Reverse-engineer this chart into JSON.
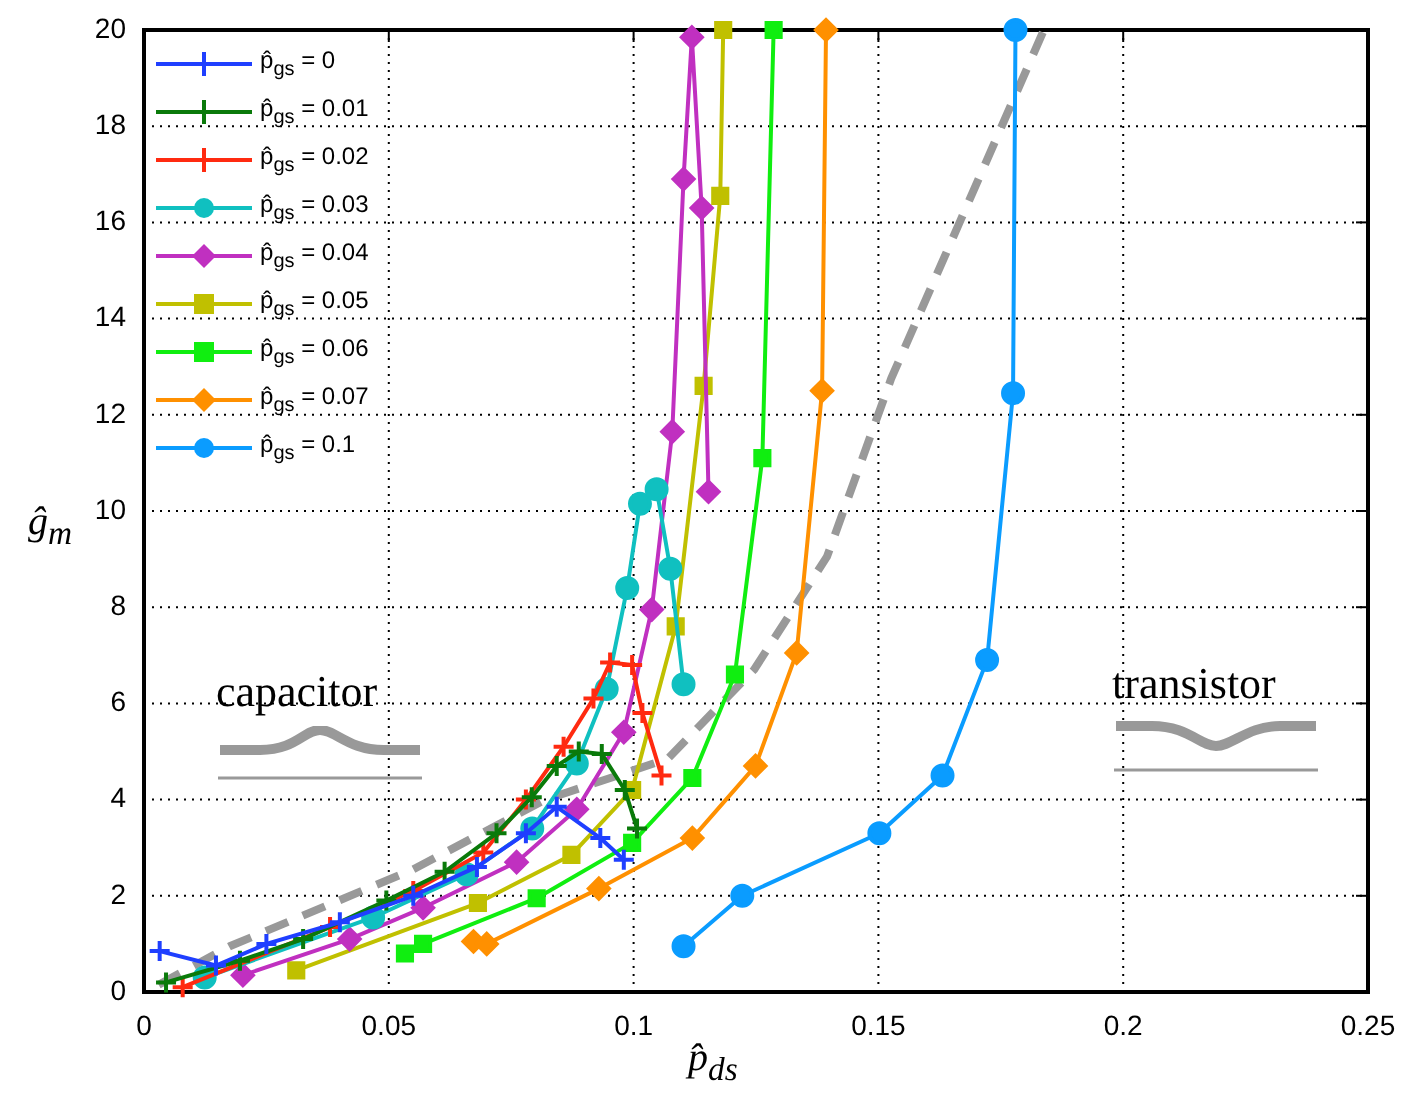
{
  "chart_data": {
    "type": "line",
    "xlabel": "p̂$_{ds}$",
    "ylabel": "ĝ$_{m}$",
    "xlim": [
      0,
      0.25
    ],
    "ylim": [
      0,
      20
    ],
    "xticks": [
      0,
      0.05,
      0.1,
      0.15,
      0.2,
      0.25
    ],
    "yticks": [
      0,
      2,
      4,
      6,
      8,
      10,
      12,
      14,
      16,
      18,
      20
    ],
    "grid": true,
    "legend": "top left",
    "annotations": [
      "capacitor",
      "transistor"
    ],
    "series": [
      {
        "name": "p̂$_{gs}$ = 0",
        "color": "#1f3fff",
        "marker": "cross",
        "x": [
          0.0032,
          0.0147,
          0.025,
          0.04,
          0.055,
          0.068,
          0.078,
          0.0843,
          0.0932,
          0.098
        ],
        "values": [
          0.85,
          0.55,
          1.0,
          1.45,
          2.0,
          2.6,
          3.3,
          3.85,
          3.2,
          2.75
        ]
      },
      {
        "name": "p̂$_{gs}$ = 0.01",
        "color": "#0a7a0a",
        "marker": "cross",
        "x": [
          0.0045,
          0.0196,
          0.0325,
          0.0495,
          0.0614,
          0.072,
          0.0792,
          0.0843,
          0.0888,
          0.0935,
          0.0982,
          0.1007
        ],
        "values": [
          0.2,
          0.65,
          1.1,
          1.9,
          2.5,
          3.3,
          4.05,
          4.7,
          5.0,
          4.95,
          4.2,
          3.4
        ]
      },
      {
        "name": "p̂$_{gs}$ = 0.02",
        "color": "#ff2a10",
        "marker": "cross",
        "x": [
          0.0079,
          0.038,
          0.055,
          0.0693,
          0.078,
          0.0857,
          0.0918,
          0.0952,
          0.0997,
          0.1018,
          0.1057
        ],
        "values": [
          0.1,
          1.35,
          2.1,
          2.9,
          4.0,
          5.1,
          6.1,
          6.85,
          6.8,
          5.8,
          4.5
        ]
      },
      {
        "name": "p̂$_{gs}$ = 0.03",
        "color": "#10c0c0",
        "marker": "circle",
        "x": [
          0.0124,
          0.0468,
          0.0659,
          0.0793,
          0.0884,
          0.0945,
          0.0987,
          0.1013,
          0.1047,
          0.1075,
          0.1102
        ],
        "values": [
          0.3,
          1.55,
          2.45,
          3.4,
          4.75,
          6.3,
          8.4,
          10.15,
          10.45,
          8.8,
          6.4
        ]
      },
      {
        "name": "p̂$_{gs}$ = 0.04",
        "color": "#c030c0",
        "marker": "diamond",
        "x": [
          0.0202,
          0.042,
          0.057,
          0.0761,
          0.0884,
          0.098,
          0.1037,
          0.1079,
          0.1102,
          0.1119,
          0.1139,
          0.1153
        ],
        "values": [
          0.35,
          1.1,
          1.75,
          2.7,
          3.8,
          5.4,
          7.95,
          11.65,
          16.9,
          19.85,
          16.3,
          10.4
        ]
      },
      {
        "name": "p̂$_{gs}$ = 0.05",
        "color": "#c0c000",
        "marker": "square",
        "x": [
          0.0311,
          0.0682,
          0.0873,
          0.0997,
          0.1086,
          0.1143,
          0.1177,
          0.1183
        ],
        "values": [
          0.45,
          1.85,
          2.85,
          4.2,
          7.6,
          12.6,
          16.55,
          20
        ]
      },
      {
        "name": "p̂$_{gs}$ = 0.06",
        "color": "#10ee10",
        "marker": "square",
        "x": [
          0.0533,
          0.057,
          0.0802,
          0.0997,
          0.112,
          0.1207,
          0.1263,
          0.1286
        ],
        "values": [
          0.8,
          1.0,
          1.95,
          3.1,
          4.45,
          6.6,
          11.1,
          20
        ]
      },
      {
        "name": "p̂$_{gs}$ = 0.07",
        "color": "#ff9000",
        "marker": "diamond",
        "x": [
          0.0673,
          0.07,
          0.0929,
          0.112,
          0.1249,
          0.1333,
          0.1385,
          0.1393
        ],
        "values": [
          1.05,
          1.0,
          2.15,
          3.2,
          4.7,
          7.05,
          12.5,
          20
        ]
      },
      {
        "name": "p̂$_{gs}$ = 0.1",
        "color": "#0a9cff",
        "marker": "circle",
        "x": [
          0.1102,
          0.1222,
          0.1502,
          0.1631,
          0.1722,
          0.1775,
          0.178
        ],
        "values": [
          0.95,
          2.0,
          3.3,
          4.5,
          6.9,
          12.45,
          20
        ]
      },
      {
        "color": "#999999",
        "marker": "none",
        "line_style": "dashed",
        "x": [
          0.003,
          0.0175,
          0.055,
          0.082,
          0.107,
          0.1246,
          0.1395,
          0.1526,
          0.1668,
          0.1838
        ],
        "values": [
          0.15,
          0.95,
          2.55,
          4.0,
          4.85,
          6.7,
          9.05,
          12.75,
          16.05,
          20
        ]
      }
    ]
  }
}
